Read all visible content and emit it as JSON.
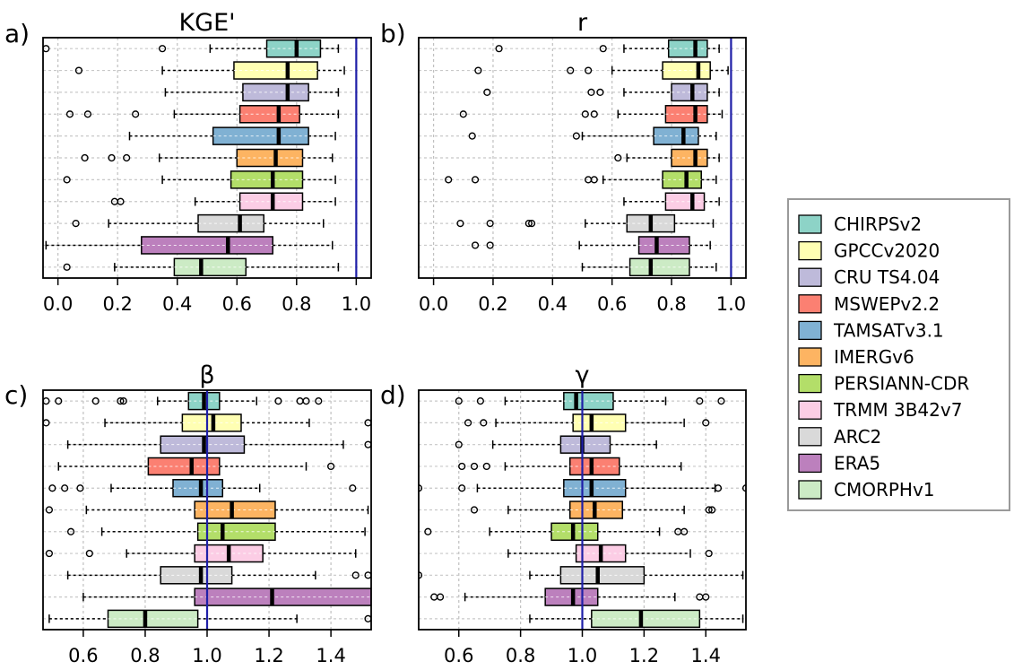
{
  "colors": {
    "CHIRPSv2": "#8DD3C7",
    "GPCCv2020": "#FFFFB3",
    "CRU TS4.04": "#BEBADA",
    "MSWEPv2.2": "#FB8072",
    "TAMSATv3.1": "#80B1D3",
    "IMERGv6": "#FDB462",
    "PERSIANN-CDR": "#B3DE69",
    "TRMM 3B42v7": "#FCCDE5",
    "ARC2": "#D9D9D9",
    "ERA5": "#BC80BD",
    "CMORPHv1": "#CCEBC5",
    "reference_line": "#1f1fa8"
  },
  "legend": {
    "items": [
      "CHIRPSv2",
      "GPCCv2020",
      "CRU TS4.04",
      "MSWEPv2.2",
      "TAMSATv3.1",
      "IMERGv6",
      "PERSIANN-CDR",
      "TRMM 3B42v7",
      "ARC2",
      "ERA5",
      "CMORPHv1"
    ]
  },
  "chart_data": [
    {
      "type": "boxplot",
      "panel": "a)",
      "title": "KGE'",
      "xlim": [
        -0.05,
        1.05
      ],
      "ticks": [
        0.0,
        0.2,
        0.4,
        0.6,
        0.8,
        1.0
      ],
      "tick_labels": [
        "0.0",
        "0.2",
        "0.4",
        "0.6",
        "0.8",
        "1.0"
      ],
      "reference": 1.0,
      "grid": true,
      "series": [
        {
          "name": "CHIRPSv2",
          "whisker_low": 0.51,
          "q1": 0.7,
          "median": 0.8,
          "q3": 0.88,
          "whisker_high": 0.94,
          "outliers": [
            -0.04,
            0.35
          ]
        },
        {
          "name": "GPCCv2020",
          "whisker_low": 0.35,
          "q1": 0.59,
          "median": 0.77,
          "q3": 0.87,
          "whisker_high": 0.96,
          "outliers": [
            0.07
          ]
        },
        {
          "name": "CRU TS4.04",
          "whisker_low": 0.36,
          "q1": 0.62,
          "median": 0.77,
          "q3": 0.84,
          "whisker_high": 0.94,
          "outliers": []
        },
        {
          "name": "MSWEPv2.2",
          "whisker_low": 0.39,
          "q1": 0.61,
          "median": 0.74,
          "q3": 0.81,
          "whisker_high": 0.94,
          "outliers": [
            0.04,
            0.1,
            0.26
          ]
        },
        {
          "name": "TAMSATv3.1",
          "whisker_low": 0.24,
          "q1": 0.52,
          "median": 0.74,
          "q3": 0.84,
          "whisker_high": 0.93,
          "outliers": []
        },
        {
          "name": "IMERGv6",
          "whisker_low": 0.34,
          "q1": 0.6,
          "median": 0.73,
          "q3": 0.82,
          "whisker_high": 0.92,
          "outliers": [
            0.09,
            0.18,
            0.23
          ]
        },
        {
          "name": "PERSIANN-CDR",
          "whisker_low": 0.35,
          "q1": 0.58,
          "median": 0.72,
          "q3": 0.82,
          "whisker_high": 0.93,
          "outliers": [
            0.03
          ]
        },
        {
          "name": "TRMM 3B42v7",
          "whisker_low": 0.46,
          "q1": 0.61,
          "median": 0.72,
          "q3": 0.82,
          "whisker_high": 0.93,
          "outliers": [
            0.19,
            0.21
          ]
        },
        {
          "name": "ARC2",
          "whisker_low": 0.17,
          "q1": 0.47,
          "median": 0.61,
          "q3": 0.69,
          "whisker_high": 0.89,
          "outliers": [
            0.06
          ]
        },
        {
          "name": "ERA5",
          "whisker_low": -0.04,
          "q1": 0.28,
          "median": 0.57,
          "q3": 0.72,
          "whisker_high": 0.92,
          "outliers": []
        },
        {
          "name": "CMORPHv1",
          "whisker_low": 0.19,
          "q1": 0.39,
          "median": 0.48,
          "q3": 0.63,
          "whisker_high": 0.94,
          "outliers": [
            0.03
          ]
        }
      ]
    },
    {
      "type": "boxplot",
      "panel": "b)",
      "title": "r",
      "xlim": [
        -0.05,
        1.05
      ],
      "ticks": [
        0.0,
        0.2,
        0.4,
        0.6,
        0.8,
        1.0
      ],
      "tick_labels": [
        "0.0",
        "0.2",
        "0.4",
        "0.6",
        "0.8",
        "1.0"
      ],
      "reference": 1.0,
      "grid": true,
      "series": [
        {
          "name": "CHIRPSv2",
          "whisker_low": 0.64,
          "q1": 0.79,
          "median": 0.88,
          "q3": 0.92,
          "whisker_high": 0.96,
          "outliers": [
            0.22,
            0.57
          ]
        },
        {
          "name": "GPCCv2020",
          "whisker_low": 0.6,
          "q1": 0.77,
          "median": 0.89,
          "q3": 0.93,
          "whisker_high": 0.99,
          "outliers": [
            0.15,
            0.46,
            0.52
          ]
        },
        {
          "name": "CRU TS4.04",
          "whisker_low": 0.64,
          "q1": 0.8,
          "median": 0.87,
          "q3": 0.92,
          "whisker_high": 0.96,
          "outliers": [
            0.18,
            0.53,
            0.56
          ]
        },
        {
          "name": "MSWEPv2.2",
          "whisker_low": 0.62,
          "q1": 0.78,
          "median": 0.88,
          "q3": 0.92,
          "whisker_high": 0.97,
          "outliers": [
            0.1,
            0.51,
            0.54
          ]
        },
        {
          "name": "TAMSATv3.1",
          "whisker_low": 0.5,
          "q1": 0.74,
          "median": 0.84,
          "q3": 0.89,
          "whisker_high": 0.95,
          "outliers": [
            0.13,
            0.48
          ]
        },
        {
          "name": "IMERGv6",
          "whisker_low": 0.65,
          "q1": 0.8,
          "median": 0.88,
          "q3": 0.92,
          "whisker_high": 0.96,
          "outliers": [
            0.62
          ]
        },
        {
          "name": "PERSIANN-CDR",
          "whisker_low": 0.57,
          "q1": 0.77,
          "median": 0.85,
          "q3": 0.9,
          "whisker_high": 0.95,
          "outliers": [
            0.05,
            0.14,
            0.52,
            0.54
          ]
        },
        {
          "name": "TRMM 3B42v7",
          "whisker_low": 0.64,
          "q1": 0.78,
          "median": 0.87,
          "q3": 0.91,
          "whisker_high": 0.96,
          "outliers": []
        },
        {
          "name": "ARC2",
          "whisker_low": 0.51,
          "q1": 0.65,
          "median": 0.73,
          "q3": 0.81,
          "whisker_high": 0.94,
          "outliers": [
            0.09,
            0.19,
            0.32,
            0.33
          ]
        },
        {
          "name": "ERA5",
          "whisker_low": 0.49,
          "q1": 0.69,
          "median": 0.75,
          "q3": 0.86,
          "whisker_high": 0.93,
          "outliers": [
            0.14,
            0.19
          ]
        },
        {
          "name": "CMORPHv1",
          "whisker_low": 0.5,
          "q1": 0.66,
          "median": 0.73,
          "q3": 0.86,
          "whisker_high": 0.95,
          "outliers": []
        }
      ]
    },
    {
      "type": "boxplot",
      "panel": "c)",
      "title": "β",
      "xlim": [
        0.47,
        1.53
      ],
      "ticks": [
        0.6,
        0.8,
        1.0,
        1.2,
        1.4
      ],
      "tick_labels": [
        "0.6",
        "0.8",
        "1.0",
        "1.2",
        "1.4"
      ],
      "reference": 1.0,
      "grid": true,
      "series": [
        {
          "name": "CHIRPSv2",
          "whisker_low": 0.84,
          "q1": 0.94,
          "median": 0.99,
          "q3": 1.04,
          "whisker_high": 1.16,
          "outliers": [
            0.48,
            0.52,
            0.64,
            0.72,
            0.73,
            1.23,
            1.3,
            1.32,
            1.36
          ]
        },
        {
          "name": "GPCCv2020",
          "whisker_low": 0.67,
          "q1": 0.92,
          "median": 1.02,
          "q3": 1.11,
          "whisker_high": 1.33,
          "outliers": [
            0.48,
            1.52
          ]
        },
        {
          "name": "CRU TS4.04",
          "whisker_low": 0.55,
          "q1": 0.85,
          "median": 0.99,
          "q3": 1.12,
          "whisker_high": 1.44,
          "outliers": [
            1.52
          ]
        },
        {
          "name": "MSWEPv2.2",
          "whisker_low": 0.52,
          "q1": 0.81,
          "median": 0.95,
          "q3": 1.04,
          "whisker_high": 1.32,
          "outliers": [
            1.4
          ]
        },
        {
          "name": "TAMSATv3.1",
          "whisker_low": 0.69,
          "q1": 0.89,
          "median": 0.98,
          "q3": 1.05,
          "whisker_high": 1.17,
          "outliers": [
            0.5,
            0.54,
            0.59,
            1.47
          ]
        },
        {
          "name": "IMERGv6",
          "whisker_low": 0.61,
          "q1": 0.96,
          "median": 1.08,
          "q3": 1.22,
          "whisker_high": 1.52,
          "outliers": [
            0.49
          ]
        },
        {
          "name": "PERSIANN-CDR",
          "whisker_low": 0.66,
          "q1": 0.97,
          "median": 1.05,
          "q3": 1.22,
          "whisker_high": 1.51,
          "outliers": [
            0.56
          ]
        },
        {
          "name": "TRMM 3B42v7",
          "whisker_low": 0.74,
          "q1": 0.96,
          "median": 1.07,
          "q3": 1.18,
          "whisker_high": 1.48,
          "outliers": [
            0.49,
            0.62
          ]
        },
        {
          "name": "ARC2",
          "whisker_low": 0.55,
          "q1": 0.85,
          "median": 0.98,
          "q3": 1.08,
          "whisker_high": 1.35,
          "outliers": [
            1.48,
            1.52
          ]
        },
        {
          "name": "ERA5",
          "whisker_low": 0.6,
          "q1": 0.96,
          "median": 1.21,
          "q3": 1.53,
          "whisker_high": 1.53,
          "outliers": []
        },
        {
          "name": "CMORPHv1",
          "whisker_low": 0.49,
          "q1": 0.68,
          "median": 0.8,
          "q3": 0.97,
          "whisker_high": 1.29,
          "outliers": [
            1.52
          ]
        }
      ]
    },
    {
      "type": "boxplot",
      "panel": "d)",
      "title": "γ",
      "xlim": [
        0.47,
        1.53
      ],
      "ticks": [
        0.6,
        0.8,
        1.0,
        1.2,
        1.4
      ],
      "tick_labels": [
        "0.6",
        "0.8",
        "1.0",
        "1.2",
        "1.4"
      ],
      "reference": 1.0,
      "grid": true,
      "series": [
        {
          "name": "CHIRPSv2",
          "whisker_low": 0.75,
          "q1": 0.94,
          "median": 0.98,
          "q3": 1.1,
          "whisker_high": 1.27,
          "outliers": [
            0.6,
            0.67,
            1.38,
            1.45
          ]
        },
        {
          "name": "GPCCv2020",
          "whisker_low": 0.72,
          "q1": 0.97,
          "median": 1.03,
          "q3": 1.14,
          "whisker_high": 1.33,
          "outliers": [
            0.63,
            0.68,
            1.4
          ]
        },
        {
          "name": "CRU TS4.04",
          "whisker_low": 0.71,
          "q1": 0.93,
          "median": 1.0,
          "q3": 1.09,
          "whisker_high": 1.24,
          "outliers": [
            0.6
          ]
        },
        {
          "name": "MSWEPv2.2",
          "whisker_low": 0.75,
          "q1": 0.96,
          "median": 1.03,
          "q3": 1.12,
          "whisker_high": 1.32,
          "outliers": [
            0.61,
            0.65,
            0.69
          ]
        },
        {
          "name": "TAMSATv3.1",
          "whisker_low": 0.66,
          "q1": 0.94,
          "median": 1.03,
          "q3": 1.14,
          "whisker_high": 1.43,
          "outliers": [
            0.47,
            0.61,
            1.44,
            1.53
          ]
        },
        {
          "name": "IMERGv6",
          "whisker_low": 0.76,
          "q1": 0.96,
          "median": 1.04,
          "q3": 1.13,
          "whisker_high": 1.33,
          "outliers": [
            0.65,
            1.41,
            1.42
          ]
        },
        {
          "name": "PERSIANN-CDR",
          "whisker_low": 0.7,
          "q1": 0.9,
          "median": 0.97,
          "q3": 1.05,
          "whisker_high": 1.25,
          "outliers": [
            0.5,
            1.31,
            1.33
          ]
        },
        {
          "name": "TRMM 3B42v7",
          "whisker_low": 0.76,
          "q1": 0.98,
          "median": 1.06,
          "q3": 1.14,
          "whisker_high": 1.35,
          "outliers": [
            1.41
          ]
        },
        {
          "name": "ARC2",
          "whisker_low": 0.83,
          "q1": 0.93,
          "median": 1.05,
          "q3": 1.2,
          "whisker_high": 1.52,
          "outliers": [
            0.47
          ]
        },
        {
          "name": "ERA5",
          "whisker_low": 0.62,
          "q1": 0.88,
          "median": 0.97,
          "q3": 1.05,
          "whisker_high": 1.3,
          "outliers": [
            0.52,
            0.54,
            1.38,
            1.4
          ]
        },
        {
          "name": "CMORPHv1",
          "whisker_low": 0.83,
          "q1": 1.03,
          "median": 1.19,
          "q3": 1.38,
          "whisker_high": 1.52,
          "outliers": []
        }
      ]
    }
  ]
}
